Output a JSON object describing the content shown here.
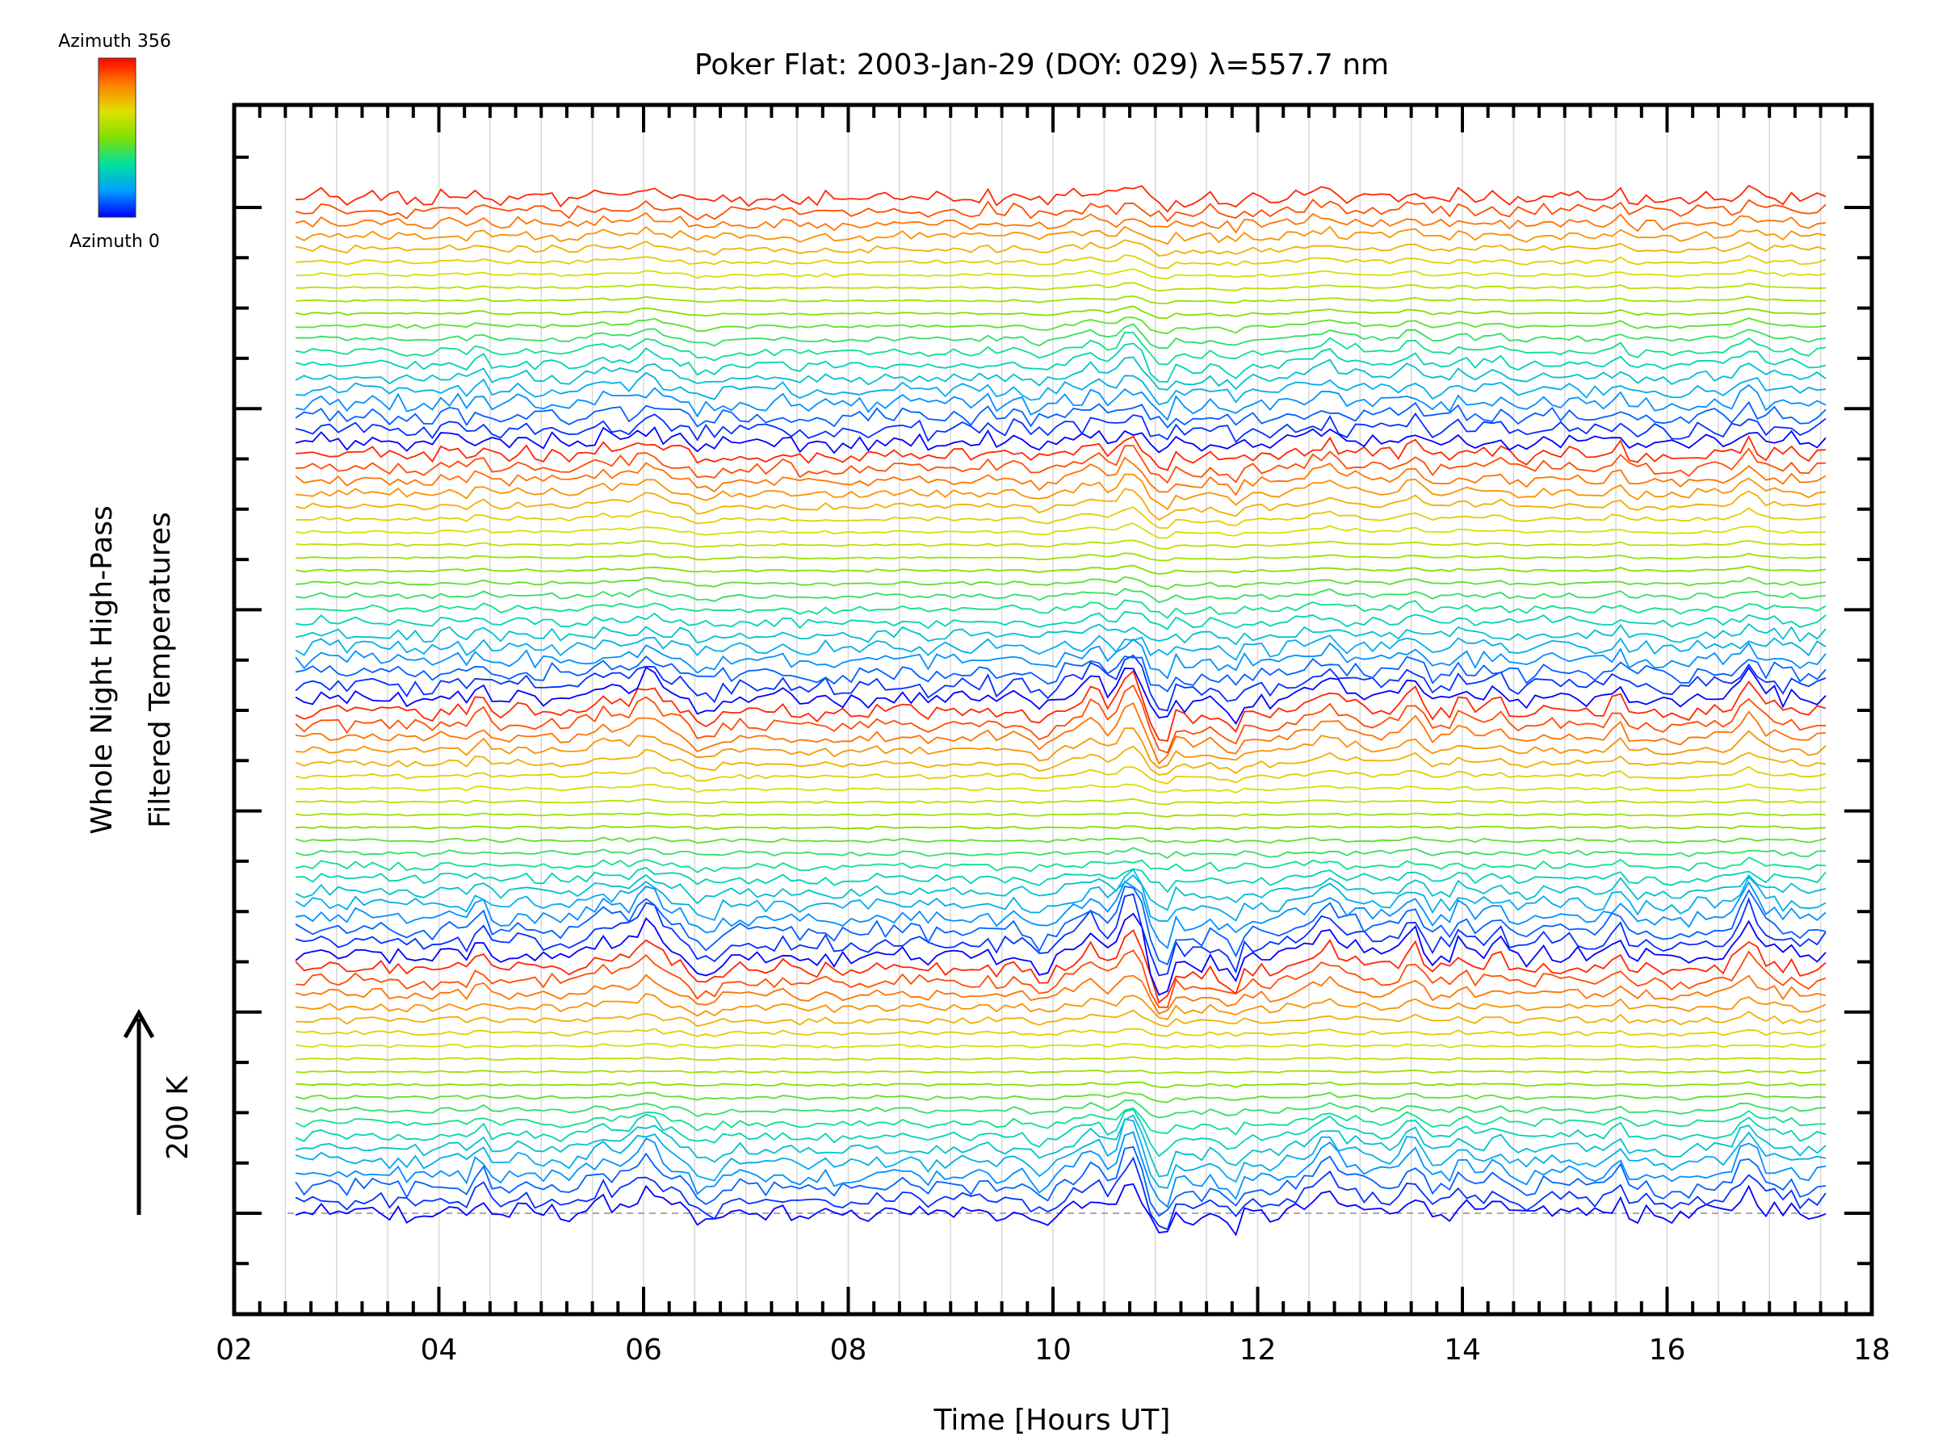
{
  "chart_data": {
    "type": "line",
    "title": "Poker Flat: 2003-Jan-29 (DOY: 029) λ=557.7 nm",
    "xlabel": "Time [Hours UT]",
    "ylabel_line1": "Whole Night High-Pass",
    "ylabel_line2": "Filtered Temperatures",
    "scale_label": "200 K",
    "xlim": [
      2,
      18
    ],
    "x_ticks": [
      "02",
      "04",
      "06",
      "08",
      "10",
      "12",
      "14",
      "16",
      "18"
    ],
    "x_tick_values": [
      2,
      4,
      6,
      8,
      10,
      12,
      14,
      16,
      18
    ],
    "colorbar": {
      "top_label": "Azimuth 356",
      "bottom_label": "Azimuth 0",
      "min": 0,
      "max": 356,
      "colors": [
        "#0000ff",
        "#00a0ff",
        "#00e0a0",
        "#80e000",
        "#e0e000",
        "#ff8000",
        "#ff0000"
      ]
    },
    "series_count": 80,
    "x_start": 2.6,
    "x_end": 17.55,
    "grid": true,
    "features": [
      {
        "x": 4.4,
        "amp": 0.6,
        "w": 0.06
      },
      {
        "x": 5.6,
        "amp": 0.4,
        "w": 0.18
      },
      {
        "x": 6.05,
        "amp": 1.0,
        "w": 0.15
      },
      {
        "x": 6.6,
        "amp": -0.5,
        "w": 0.12
      },
      {
        "x": 9.9,
        "amp": -0.7,
        "w": 0.05
      },
      {
        "x": 10.35,
        "amp": 0.8,
        "w": 0.1
      },
      {
        "x": 10.75,
        "amp": 1.6,
        "w": 0.1
      },
      {
        "x": 11.05,
        "amp": -1.2,
        "w": 0.09
      },
      {
        "x": 11.45,
        "amp": -0.3,
        "w": 0.1
      },
      {
        "x": 11.75,
        "amp": -0.8,
        "w": 0.08
      },
      {
        "x": 12.7,
        "amp": 0.9,
        "w": 0.12
      },
      {
        "x": 12.95,
        "amp": 0.5,
        "w": 0.06
      },
      {
        "x": 13.5,
        "amp": 0.85,
        "w": 0.08
      },
      {
        "x": 14.0,
        "amp": 0.5,
        "w": 0.07
      },
      {
        "x": 14.35,
        "amp": 0.55,
        "w": 0.07
      },
      {
        "x": 15.5,
        "amp": 0.7,
        "w": 0.06
      },
      {
        "x": 16.8,
        "amp": 1.1,
        "w": 0.12
      }
    ]
  }
}
